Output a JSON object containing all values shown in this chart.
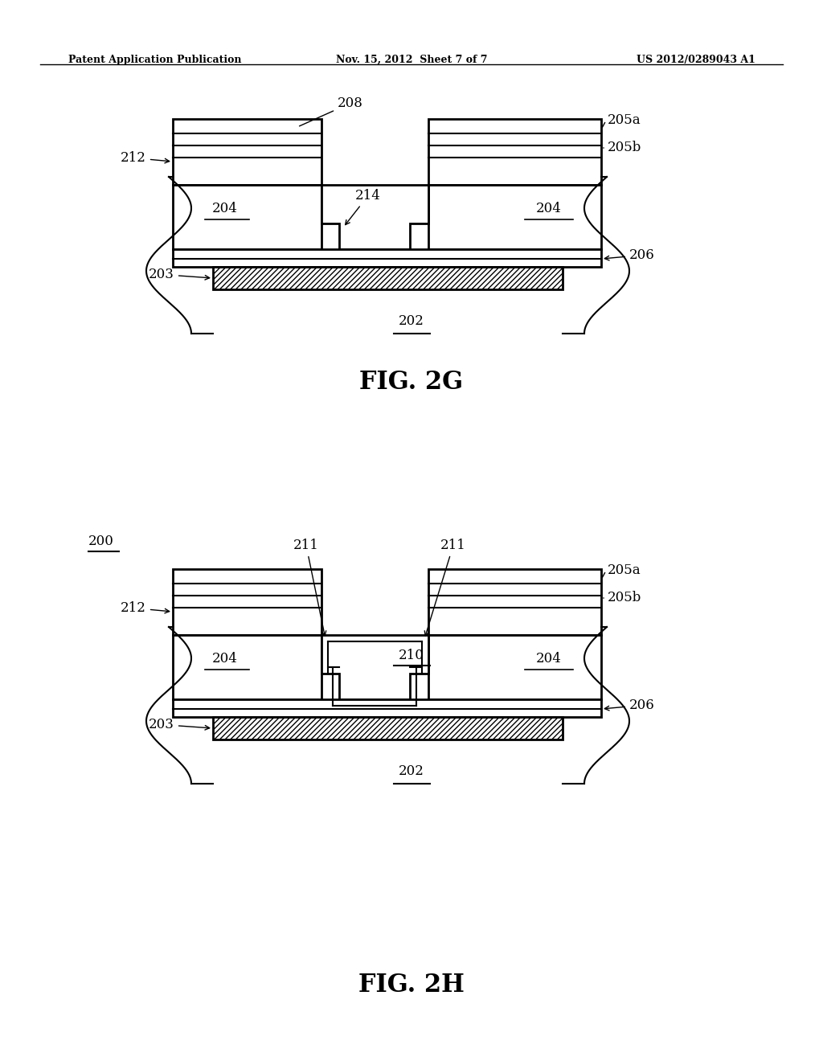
{
  "bg_color": "#ffffff",
  "line_color": "#000000",
  "header_left": "Patent Application Publication",
  "header_mid": "Nov. 15, 2012  Sheet 7 of 7",
  "header_right": "US 2012/0289043 A1",
  "fig_label_2g": "FIG. 2G",
  "fig_label_2h": "FIG. 2H",
  "label_200": "200"
}
